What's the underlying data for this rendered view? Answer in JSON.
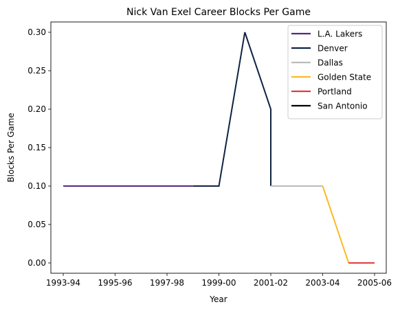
{
  "chart_data": {
    "type": "line",
    "title": "Nick Van Exel Career Blocks Per Game",
    "xlabel": "Year",
    "ylabel": "Blocks Per Game",
    "xlim": [
      1993,
      2005
    ],
    "ylim": [
      0,
      0.3
    ],
    "x_ticks": [
      {
        "x": 1993,
        "label": "1993-94"
      },
      {
        "x": 1995,
        "label": "1995-96"
      },
      {
        "x": 1997,
        "label": "1997-98"
      },
      {
        "x": 1999,
        "label": "1999-00"
      },
      {
        "x": 2001,
        "label": "2001-02"
      },
      {
        "x": 2003,
        "label": "2003-04"
      },
      {
        "x": 2005,
        "label": "2005-06"
      }
    ],
    "y_ticks": [
      {
        "y": 0.0,
        "label": "0.00"
      },
      {
        "y": 0.05,
        "label": "0.05"
      },
      {
        "y": 0.1,
        "label": "0.10"
      },
      {
        "y": 0.15,
        "label": "0.15"
      },
      {
        "y": 0.2,
        "label": "0.20"
      },
      {
        "y": 0.25,
        "label": "0.25"
      },
      {
        "y": 0.3,
        "label": "0.30"
      }
    ],
    "grid": false,
    "legend_position": "top-right",
    "series": [
      {
        "name": "L.A. Lakers",
        "color": "#552583",
        "points": [
          [
            1993,
            0.1
          ],
          [
            1998,
            0.1
          ]
        ]
      },
      {
        "name": "Denver",
        "color": "#0E2240",
        "points": [
          [
            1998,
            0.1
          ],
          [
            1999,
            0.1
          ],
          [
            2000,
            0.3
          ],
          [
            2001,
            0.2
          ],
          [
            2001,
            0.1
          ]
        ]
      },
      {
        "name": "Dallas",
        "color": "#BBBBBB",
        "points": [
          [
            2001,
            0.1
          ],
          [
            2003,
            0.1
          ]
        ]
      },
      {
        "name": "Golden State",
        "color": "#FDB927",
        "points": [
          [
            2003,
            0.1
          ],
          [
            2004,
            0.0
          ]
        ]
      },
      {
        "name": "Portland",
        "color": "#E03A3E",
        "points": [
          [
            2004,
            0.0
          ],
          [
            2005,
            0.0
          ]
        ]
      },
      {
        "name": "San Antonio",
        "color": "#000000",
        "points": []
      }
    ]
  }
}
